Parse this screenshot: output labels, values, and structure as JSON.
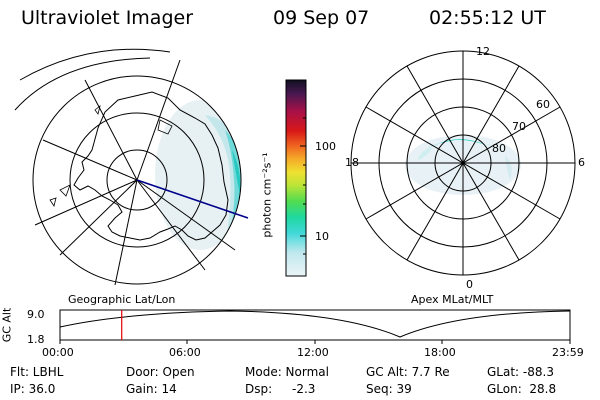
{
  "header": {
    "title": "Ultraviolet Imager",
    "date": "09 Sep 07",
    "time": "02:55:12 UT"
  },
  "geographic_panel": {
    "label": "Geographic Lat/Lon"
  },
  "apex_panel": {
    "label": "Apex MLat/MLT",
    "mlt_labels": {
      "top": "12",
      "left": "18",
      "right": "6",
      "bottom": "0"
    },
    "lat_labels": [
      "80",
      "70",
      "60"
    ]
  },
  "colorbar": {
    "unit_label": "photon cm⁻²s⁻¹",
    "ticks": [
      "100",
      "10"
    ],
    "colors": [
      "#e6f2f8",
      "#bfe8ee",
      "#7fe0e8",
      "#2ed8d0",
      "#20d8a0",
      "#38d860",
      "#7ee040",
      "#c8e838",
      "#f0e030",
      "#f4b028",
      "#f47820",
      "#e84020",
      "#d41818",
      "#b01040",
      "#801858",
      "#401850",
      "#101030"
    ]
  },
  "altitude_plot": {
    "ylabel": "GC Alt",
    "y_ticks": [
      "9.0",
      "1.8"
    ],
    "x_ticks": [
      "00:00",
      "06:00",
      "12:00",
      "18:00",
      "23:59"
    ],
    "current_time_fraction": 0.121
  },
  "info": {
    "flt": "Flt: LBHL",
    "ip": "IP: 36.0",
    "door": "Door: Open",
    "gain": "Gain: 14",
    "mode": "Mode: Normal",
    "dsp": "Dsp:",
    "dsp_value": "-2.3",
    "gc_alt": "GC Alt: 7.7 Re",
    "seq": "Seq: 39",
    "glat": "GLat: -88.3",
    "glon": "GLon:  28.8"
  }
}
